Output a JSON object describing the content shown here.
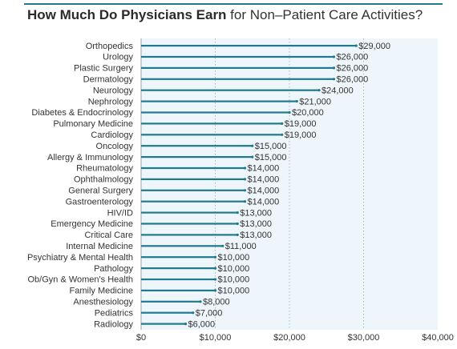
{
  "title_bold": "How Much Do Physicians Earn",
  "title_rest": " for Non–Patient Care Activities?",
  "colors": {
    "bar": "#1f7a8c",
    "plot_background": "#eef6fb",
    "grid": "#9aa9b3",
    "text": "#333333",
    "title_rule": "#1f7a8c"
  },
  "chart_data": {
    "type": "bar",
    "orientation": "horizontal",
    "title": "How Much Do Physicians Earn for Non–Patient Care Activities?",
    "xlabel": "",
    "ylabel": "",
    "xlim": [
      0,
      40000
    ],
    "grid": true,
    "x_ticks": [
      0,
      10000,
      20000,
      30000,
      40000
    ],
    "x_tick_labels": [
      "$0",
      "$10,000",
      "$20,000",
      "$30,000",
      "$40,000"
    ],
    "categories": [
      "Orthopedics",
      "Urology",
      "Plastic Surgery",
      "Dermatology",
      "Neurology",
      "Nephrology",
      "Diabetes & Endocrinology",
      "Pulmonary Medicine",
      "Cardiology",
      "Oncology",
      "Allergy & Immunology",
      "Rheumatology",
      "Ophthalmology",
      "General Surgery",
      "Gastroenterology",
      "HIV/ID",
      "Emergency Medicine",
      "Critical Care",
      "Internal Medicine",
      "Psychiatry & Mental Health",
      "Pathology",
      "Ob/Gyn & Women's Health",
      "Family Medicine",
      "Anesthesiology",
      "Pediatrics",
      "Radiology"
    ],
    "values": [
      29000,
      26000,
      26000,
      26000,
      24000,
      21000,
      20000,
      19000,
      19000,
      15000,
      15000,
      14000,
      14000,
      14000,
      14000,
      13000,
      13000,
      13000,
      11000,
      10000,
      10000,
      10000,
      10000,
      8000,
      7000,
      6000
    ],
    "value_labels": [
      "$29,000",
      "$26,000",
      "$26,000",
      "$26,000",
      "$24,000",
      "$21,000",
      "$20,000",
      "$19,000",
      "$19,000",
      "$15,000",
      "$15,000",
      "$14,000",
      "$14,000",
      "$14,000",
      "$14,000",
      "$13,000",
      "$13,000",
      "$13,000",
      "$11,000",
      "$10,000",
      "$10,000",
      "$10,000",
      "$10,000",
      "$8,000",
      "$7,000",
      "$6,000"
    ]
  }
}
